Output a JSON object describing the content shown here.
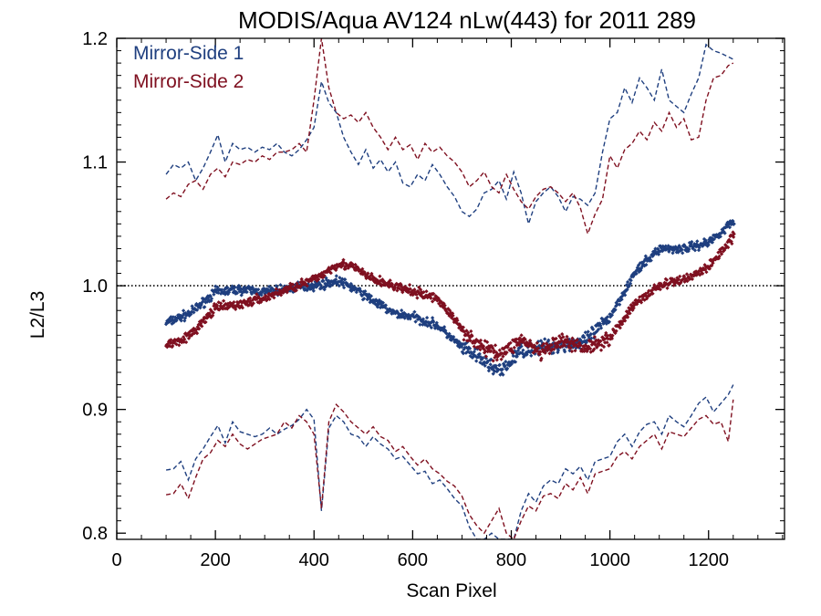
{
  "chart_data": {
    "type": "scatter",
    "title": "MODIS/Aqua AV124 nLw(443) for 2011 289",
    "xlabel": "Scan Pixel",
    "ylabel": "L2/L3",
    "xlim": [
      0,
      1354
    ],
    "ylim": [
      0.795,
      1.2
    ],
    "xticks": [
      0,
      200,
      400,
      600,
      800,
      1000,
      1200
    ],
    "xtick_labels": [
      "0",
      "200",
      "400",
      "600",
      "800",
      "1000",
      "1200"
    ],
    "yticks": [
      0.8,
      0.9,
      1.0,
      1.1,
      1.2
    ],
    "ytick_labels": [
      "0.8",
      "0.9",
      "1.0",
      "1.1",
      "1.2"
    ],
    "reference_line": 1.0,
    "legend_position": "top-left",
    "colors": {
      "ms1": "#1f3f7f",
      "ms2": "#7f1020",
      "axis": "#000000",
      "ref": "#000000"
    },
    "series": [
      {
        "name": "Mirror-Side 1",
        "color": "#1f3f7f",
        "mean": {
          "x": [
            100,
            150,
            200,
            250,
            300,
            350,
            400,
            450,
            480,
            520,
            560,
            600,
            650,
            700,
            740,
            780,
            820,
            860,
            900,
            950,
            1000,
            1050,
            1100,
            1150,
            1200,
            1250
          ],
          "y": [
            0.97,
            0.978,
            0.995,
            0.997,
            0.995,
            0.998,
            1.0,
            1.004,
            0.998,
            0.988,
            0.978,
            0.975,
            0.968,
            0.95,
            0.94,
            0.93,
            0.948,
            0.95,
            0.952,
            0.955,
            0.975,
            1.01,
            1.03,
            1.03,
            1.035,
            1.052
          ]
        },
        "upper": {
          "x": [
            100,
            115,
            130,
            145,
            160,
            175,
            190,
            205,
            220,
            235,
            250,
            265,
            280,
            295,
            310,
            325,
            340,
            355,
            370,
            385,
            400,
            415,
            430,
            445,
            460,
            475,
            490,
            505,
            520,
            535,
            550,
            565,
            580,
            595,
            610,
            625,
            640,
            655,
            670,
            685,
            700,
            715,
            730,
            745,
            760,
            775,
            790,
            805,
            820,
            835,
            850,
            865,
            880,
            895,
            910,
            925,
            940,
            955,
            970,
            985,
            1000,
            1015,
            1030,
            1045,
            1060,
            1075,
            1090,
            1105,
            1120,
            1135,
            1150,
            1165,
            1180,
            1195,
            1210,
            1225,
            1240,
            1250
          ],
          "y": [
            1.09,
            1.098,
            1.095,
            1.1,
            1.085,
            1.095,
            1.108,
            1.122,
            1.1,
            1.115,
            1.11,
            1.112,
            1.108,
            1.112,
            1.11,
            1.115,
            1.108,
            1.105,
            1.11,
            1.118,
            1.128,
            1.165,
            1.148,
            1.14,
            1.12,
            1.108,
            1.098,
            1.11,
            1.095,
            1.102,
            1.092,
            1.1,
            1.083,
            1.08,
            1.09,
            1.085,
            1.098,
            1.09,
            1.08,
            1.072,
            1.06,
            1.056,
            1.062,
            1.075,
            1.078,
            1.085,
            1.07,
            1.092,
            1.075,
            1.05,
            1.068,
            1.075,
            1.08,
            1.072,
            1.06,
            1.072,
            1.07,
            1.065,
            1.075,
            1.108,
            1.135,
            1.14,
            1.16,
            1.148,
            1.168,
            1.16,
            1.15,
            1.175,
            1.15,
            1.145,
            1.14,
            1.155,
            1.168,
            1.195,
            1.19,
            1.188,
            1.185,
            1.183
          ]
        },
        "lower": {
          "x": [
            100,
            115,
            130,
            145,
            160,
            175,
            190,
            205,
            220,
            235,
            250,
            265,
            280,
            295,
            310,
            325,
            340,
            355,
            370,
            385,
            400,
            415,
            430,
            445,
            460,
            475,
            490,
            505,
            520,
            535,
            550,
            565,
            580,
            595,
            610,
            625,
            640,
            655,
            670,
            685,
            700,
            715,
            730,
            745,
            760,
            775,
            790,
            805,
            820,
            835,
            850,
            865,
            880,
            895,
            910,
            925,
            940,
            955,
            970,
            985,
            1000,
            1015,
            1030,
            1045,
            1060,
            1075,
            1090,
            1105,
            1120,
            1135,
            1150,
            1165,
            1180,
            1195,
            1210,
            1225,
            1240,
            1250
          ],
          "y": [
            0.851,
            0.852,
            0.858,
            0.843,
            0.86,
            0.868,
            0.878,
            0.887,
            0.873,
            0.89,
            0.882,
            0.88,
            0.878,
            0.88,
            0.885,
            0.88,
            0.884,
            0.887,
            0.892,
            0.9,
            0.892,
            0.818,
            0.885,
            0.895,
            0.89,
            0.88,
            0.878,
            0.87,
            0.878,
            0.872,
            0.868,
            0.86,
            0.862,
            0.855,
            0.848,
            0.85,
            0.84,
            0.843,
            0.836,
            0.828,
            0.822,
            0.805,
            0.795,
            0.795,
            0.8,
            0.795,
            0.795,
            0.795,
            0.818,
            0.832,
            0.825,
            0.838,
            0.843,
            0.84,
            0.852,
            0.848,
            0.854,
            0.843,
            0.858,
            0.86,
            0.862,
            0.874,
            0.88,
            0.87,
            0.882,
            0.888,
            0.89,
            0.88,
            0.895,
            0.89,
            0.886,
            0.895,
            0.905,
            0.91,
            0.898,
            0.905,
            0.912,
            0.92
          ]
        }
      },
      {
        "name": "Mirror-Side 2",
        "color": "#7f1020",
        "mean": {
          "x": [
            100,
            150,
            200,
            250,
            300,
            350,
            400,
            450,
            480,
            520,
            560,
            600,
            650,
            700,
            740,
            780,
            820,
            860,
            900,
            950,
            1000,
            1050,
            1100,
            1150,
            1200,
            1250
          ],
          "y": [
            0.952,
            0.96,
            0.982,
            0.985,
            0.99,
            0.998,
            1.005,
            1.018,
            1.015,
            1.005,
            1.0,
            0.995,
            0.99,
            0.965,
            0.95,
            0.945,
            0.957,
            0.945,
            0.955,
            0.95,
            0.958,
            0.985,
            1.0,
            1.005,
            1.015,
            1.04
          ]
        },
        "upper": {
          "x": [
            100,
            115,
            130,
            145,
            160,
            175,
            190,
            205,
            220,
            235,
            250,
            265,
            280,
            295,
            310,
            325,
            340,
            355,
            370,
            385,
            400,
            415,
            430,
            445,
            460,
            475,
            490,
            505,
            520,
            535,
            550,
            565,
            580,
            595,
            610,
            625,
            640,
            655,
            670,
            685,
            700,
            715,
            730,
            745,
            760,
            775,
            790,
            805,
            820,
            835,
            850,
            865,
            880,
            895,
            910,
            925,
            940,
            955,
            970,
            985,
            1000,
            1015,
            1030,
            1045,
            1060,
            1075,
            1090,
            1105,
            1120,
            1135,
            1150,
            1165,
            1180,
            1195,
            1210,
            1225,
            1240,
            1250
          ],
          "y": [
            1.07,
            1.075,
            1.072,
            1.082,
            1.085,
            1.078,
            1.09,
            1.095,
            1.088,
            1.1,
            1.098,
            1.102,
            1.1,
            1.105,
            1.102,
            1.108,
            1.108,
            1.11,
            1.115,
            1.108,
            1.15,
            1.2,
            1.16,
            1.14,
            1.135,
            1.138,
            1.132,
            1.14,
            1.128,
            1.12,
            1.11,
            1.12,
            1.11,
            1.114,
            1.102,
            1.115,
            1.108,
            1.112,
            1.105,
            1.1,
            1.092,
            1.08,
            1.085,
            1.092,
            1.08,
            1.075,
            1.09,
            1.078,
            1.068,
            1.062,
            1.072,
            1.078,
            1.08,
            1.075,
            1.068,
            1.075,
            1.063,
            1.042,
            1.058,
            1.07,
            1.105,
            1.095,
            1.11,
            1.115,
            1.125,
            1.118,
            1.132,
            1.125,
            1.14,
            1.128,
            1.135,
            1.118,
            1.12,
            1.15,
            1.168,
            1.17,
            1.178,
            1.18
          ]
        },
        "lower": {
          "x": [
            100,
            115,
            130,
            145,
            160,
            175,
            190,
            205,
            220,
            235,
            250,
            265,
            280,
            295,
            310,
            325,
            340,
            355,
            370,
            385,
            400,
            415,
            430,
            445,
            460,
            475,
            490,
            505,
            520,
            535,
            550,
            565,
            580,
            595,
            610,
            625,
            640,
            655,
            670,
            685,
            700,
            715,
            730,
            745,
            760,
            775,
            790,
            805,
            820,
            835,
            850,
            865,
            880,
            895,
            910,
            925,
            940,
            955,
            970,
            985,
            1000,
            1015,
            1030,
            1045,
            1060,
            1075,
            1090,
            1105,
            1120,
            1135,
            1150,
            1165,
            1180,
            1195,
            1210,
            1225,
            1240,
            1250
          ],
          "y": [
            0.831,
            0.832,
            0.84,
            0.828,
            0.845,
            0.86,
            0.865,
            0.875,
            0.87,
            0.88,
            0.872,
            0.868,
            0.872,
            0.876,
            0.878,
            0.88,
            0.89,
            0.885,
            0.895,
            0.89,
            0.88,
            0.82,
            0.89,
            0.904,
            0.898,
            0.89,
            0.885,
            0.88,
            0.886,
            0.878,
            0.875,
            0.866,
            0.87,
            0.862,
            0.855,
            0.86,
            0.852,
            0.848,
            0.842,
            0.838,
            0.83,
            0.815,
            0.806,
            0.8,
            0.81,
            0.82,
            0.8,
            0.795,
            0.81,
            0.822,
            0.818,
            0.83,
            0.832,
            0.828,
            0.84,
            0.835,
            0.845,
            0.832,
            0.848,
            0.85,
            0.852,
            0.862,
            0.866,
            0.86,
            0.87,
            0.875,
            0.88,
            0.868,
            0.882,
            0.88,
            0.878,
            0.885,
            0.892,
            0.895,
            0.888,
            0.89,
            0.874,
            0.908
          ]
        }
      }
    ]
  }
}
